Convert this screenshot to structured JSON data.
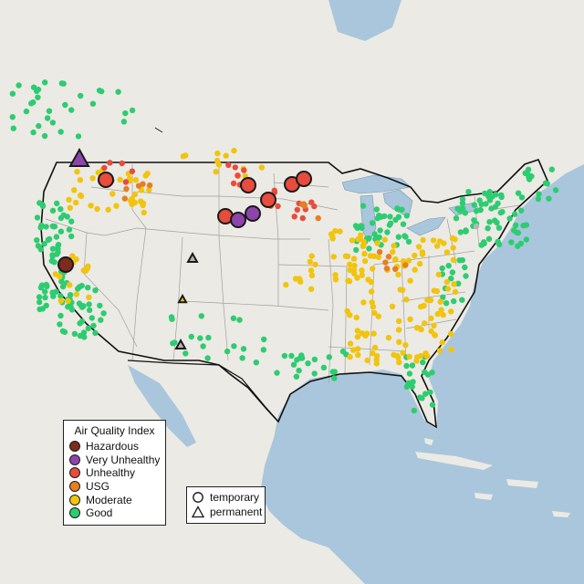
{
  "legend": {
    "title": "Air Quality Index",
    "categories": [
      {
        "label": "Hazardous",
        "color": "#7e2b1e"
      },
      {
        "label": "Very Unhealthy",
        "color": "#8e44ad"
      },
      {
        "label": "Unhealthy",
        "color": "#e74c3c"
      },
      {
        "label": "USG",
        "color": "#e67e22"
      },
      {
        "label": "Moderate",
        "color": "#f1c40f"
      },
      {
        "label": "Good",
        "color": "#2ecc71"
      }
    ]
  },
  "shape_legend": {
    "temporary": "temporary",
    "permanent": "permanent"
  },
  "colors": {
    "water": "#a9c6dc",
    "land": "#eceae4",
    "state_border": "#a0a0a0",
    "country_border": "#111111"
  }
}
